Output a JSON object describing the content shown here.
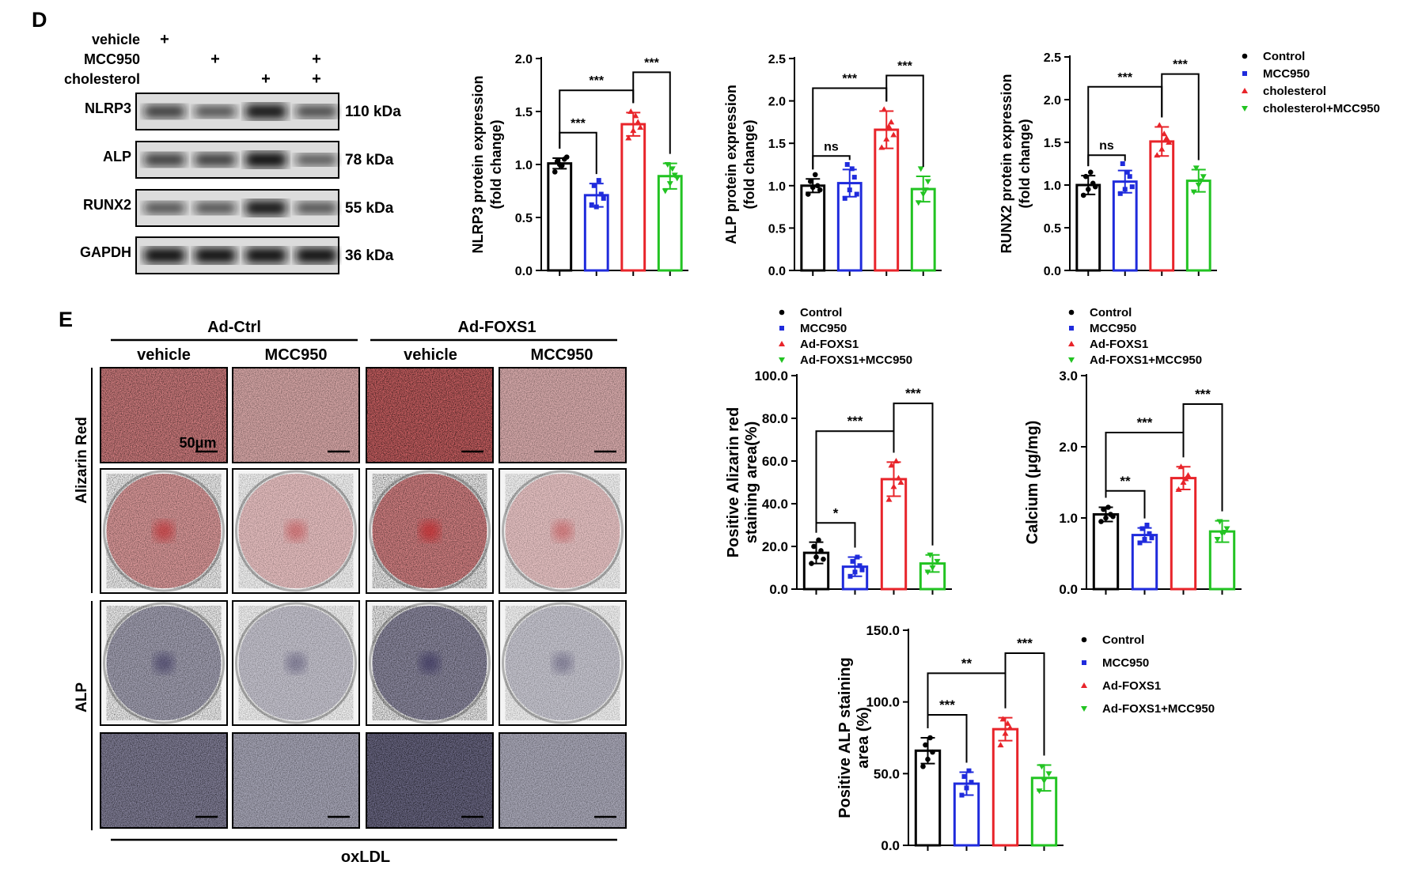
{
  "panels": {
    "d": "D",
    "e": "E"
  },
  "western": {
    "treatments": [
      {
        "label": "vehicle",
        "marks": [
          "+",
          "",
          "",
          ""
        ]
      },
      {
        "label": "MCC950",
        "marks": [
          "",
          "+",
          "",
          "+"
        ]
      },
      {
        "label": "cholesterol",
        "marks": [
          "",
          "",
          "+",
          "+"
        ]
      }
    ],
    "blots": [
      {
        "protein": "NLRP3",
        "size": "110 kDa",
        "intensity": [
          0.7,
          0.55,
          0.95,
          0.6
        ]
      },
      {
        "protein": "ALP",
        "size": "78 kDa",
        "intensity": [
          0.7,
          0.7,
          1.0,
          0.5
        ]
      },
      {
        "protein": "RUNX2",
        "size": "55 kDa",
        "intensity": [
          0.55,
          0.55,
          0.95,
          0.55
        ]
      },
      {
        "protein": "GAPDH",
        "size": "36 kDa",
        "intensity": [
          1.0,
          1.0,
          1.0,
          1.0
        ]
      }
    ]
  },
  "staining": {
    "groups": [
      "Ad-Ctrl",
      "Ad-FOXS1"
    ],
    "columns": [
      "vehicle",
      "MCC950",
      "vehicle",
      "MCC950"
    ],
    "row_labels": [
      "Alizarin Red",
      "ALP"
    ],
    "scale_bar": "50μm",
    "treatment": "oxLDL"
  },
  "chart_data": [
    {
      "type": "bar",
      "ylabel_lines": [
        "NLRP3  protein expression",
        "(fold change)"
      ],
      "categories": [
        "Control",
        "MCC950",
        "cholesterol",
        "cholesterol+MCC950"
      ],
      "values": [
        1.01,
        0.71,
        1.38,
        0.89
      ],
      "errors": [
        0.05,
        0.11,
        0.11,
        0.12
      ],
      "points": [
        [
          0.93,
          1.0,
          1.05,
          1.03,
          0.99,
          1.07
        ],
        [
          0.62,
          0.6,
          0.72,
          0.8,
          0.85,
          0.68
        ],
        [
          1.25,
          1.32,
          1.4,
          1.5,
          1.46,
          1.35
        ],
        [
          0.75,
          0.82,
          0.9,
          1.0,
          0.96,
          0.87
        ]
      ],
      "ylim": [
        0,
        2.0
      ],
      "yticks": [
        "0.0",
        "0.5",
        "1.0",
        "1.5",
        "2.0"
      ],
      "brackets": [
        {
          "from": 0,
          "to": 1,
          "y": 1.3,
          "label": "***"
        },
        {
          "from": 0,
          "to": 2,
          "y": 1.7,
          "label": "***"
        },
        {
          "from": 2,
          "to": 3,
          "y": 1.87,
          "label": "***"
        }
      ],
      "legend": []
    },
    {
      "type": "bar",
      "ylabel_lines": [
        "ALP  protein expression",
        "(fold change)"
      ],
      "categories": [
        "Control",
        "MCC950",
        "cholesterol",
        "cholesterol+MCC950"
      ],
      "values": [
        1.0,
        1.03,
        1.66,
        0.96
      ],
      "errors": [
        0.08,
        0.16,
        0.22,
        0.15
      ],
      "points": [
        [
          0.9,
          0.98,
          1.0,
          1.05,
          1.13,
          0.95
        ],
        [
          0.85,
          0.95,
          1.1,
          1.25,
          1.2,
          0.9
        ],
        [
          1.45,
          1.55,
          1.75,
          1.9,
          1.7,
          1.6
        ],
        [
          0.8,
          0.9,
          1.05,
          1.2,
          0.95
        ]
      ],
      "ylim": [
        0,
        2.5
      ],
      "yticks": [
        "0.0",
        "0.5",
        "1.0",
        "1.5",
        "2.0",
        "2.5"
      ],
      "brackets": [
        {
          "from": 0,
          "to": 1,
          "y": 1.35,
          "label": "ns"
        },
        {
          "from": 0,
          "to": 2,
          "y": 2.15,
          "label": "***"
        },
        {
          "from": 2,
          "to": 3,
          "y": 2.3,
          "label": "***"
        }
      ],
      "legend": []
    },
    {
      "type": "bar",
      "ylabel_lines": [
        "RUNX2  protein expression",
        "(fold change)"
      ],
      "categories": [
        "Control",
        "MCC950",
        "cholesterol",
        "cholesterol+MCC950"
      ],
      "values": [
        1.0,
        1.04,
        1.51,
        1.05
      ],
      "errors": [
        0.11,
        0.13,
        0.17,
        0.13
      ],
      "points": [
        [
          0.88,
          0.95,
          1.02,
          1.1,
          1.15,
          0.98
        ],
        [
          0.9,
          0.95,
          1.1,
          1.25,
          1.15,
          0.98
        ],
        [
          1.35,
          1.42,
          1.55,
          1.7,
          1.6,
          1.5
        ],
        [
          0.92,
          1.0,
          1.1,
          1.2,
          1.05
        ]
      ],
      "ylim": [
        0,
        2.5
      ],
      "yticks": [
        "0.0",
        "0.5",
        "1.0",
        "1.5",
        "2.0",
        "2.5"
      ],
      "brackets": [
        {
          "from": 0,
          "to": 1,
          "y": 1.35,
          "label": "ns"
        },
        {
          "from": 0,
          "to": 2,
          "y": 2.15,
          "label": "***"
        },
        {
          "from": 2,
          "to": 3,
          "y": 2.3,
          "label": "***"
        }
      ],
      "legend": [
        "Control",
        "MCC950",
        "cholesterol",
        "cholesterol+MCC950"
      ]
    },
    {
      "type": "bar",
      "ylabel_lines": [
        "Positive Alizarin red",
        "staining area(%)"
      ],
      "categories": [
        "Control",
        "MCC950",
        "Ad-FOXS1",
        "Ad-FOXS1+MCC950"
      ],
      "values": [
        17,
        10.5,
        51.5,
        12
      ],
      "errors": [
        5,
        4.5,
        8,
        4
      ],
      "points": [
        [
          12,
          15,
          18,
          20,
          23,
          14
        ],
        [
          6,
          8,
          11,
          13,
          15,
          9
        ],
        [
          42,
          48,
          52,
          58,
          60,
          50
        ],
        [
          8,
          10,
          13,
          16
        ]
      ],
      "ylim": [
        0,
        100
      ],
      "yticks": [
        "0.0",
        "20.0",
        "40.0",
        "60.0",
        "80.0",
        "100.0"
      ],
      "brackets": [
        {
          "from": 0,
          "to": 1,
          "y": 31,
          "label": "*"
        },
        {
          "from": 0,
          "to": 2,
          "y": 74,
          "label": "***"
        },
        {
          "from": 2,
          "to": 3,
          "y": 87,
          "label": "***"
        }
      ],
      "legend": [
        "Control",
        "MCC950",
        "Ad-FOXS1",
        "Ad-FOXS1+MCC950"
      ]
    },
    {
      "type": "bar",
      "ylabel_lines": [
        "Calcium (μg/mg)"
      ],
      "categories": [
        "Control",
        "MCC950",
        "Ad-FOXS1",
        "Ad-FOXS1+MCC950"
      ],
      "values": [
        1.05,
        0.76,
        1.56,
        0.81
      ],
      "errors": [
        0.1,
        0.1,
        0.16,
        0.15
      ],
      "points": [
        [
          0.95,
          1.0,
          1.05,
          1.12,
          1.15,
          1.02
        ],
        [
          0.65,
          0.7,
          0.78,
          0.85,
          0.9,
          0.72
        ],
        [
          1.4,
          1.5,
          1.6,
          1.72,
          1.55
        ],
        [
          0.7,
          0.78,
          0.85,
          0.95,
          0.8
        ]
      ],
      "ylim": [
        0,
        3.0
      ],
      "yticks": [
        "0.0",
        "1.0",
        "2.0",
        "3.0"
      ],
      "brackets": [
        {
          "from": 0,
          "to": 1,
          "y": 1.38,
          "label": "**"
        },
        {
          "from": 0,
          "to": 2,
          "y": 2.2,
          "label": "***"
        },
        {
          "from": 2,
          "to": 3,
          "y": 2.6,
          "label": "***"
        }
      ],
      "legend": [
        "Control",
        "MCC950",
        "Ad-FOXS1",
        "Ad-FOXS1+MCC950"
      ]
    },
    {
      "type": "bar",
      "ylabel_lines": [
        "Positive ALP staining",
        "area (%)"
      ],
      "categories": [
        "Control",
        "MCC950",
        "Ad-FOXS1",
        "Ad-FOXS1+MCC950"
      ],
      "values": [
        66,
        43,
        81,
        47
      ],
      "errors": [
        9,
        8,
        8,
        9
      ],
      "points": [
        [
          55,
          60,
          65,
          70,
          75
        ],
        [
          35,
          40,
          44,
          48,
          52
        ],
        [
          70,
          78,
          82,
          88,
          85
        ],
        [
          38,
          45,
          50,
          55
        ]
      ],
      "ylim": [
        0,
        150
      ],
      "yticks": [
        "0.0",
        "50.0",
        "100.0",
        "150.0"
      ],
      "brackets": [
        {
          "from": 0,
          "to": 1,
          "y": 91,
          "label": "***"
        },
        {
          "from": 0,
          "to": 2,
          "y": 120,
          "label": "**"
        },
        {
          "from": 2,
          "to": 3,
          "y": 134,
          "label": "***"
        }
      ],
      "legend": [
        "Control",
        "MCC950",
        "Ad-FOXS1",
        "Ad-FOXS1+MCC950"
      ]
    }
  ],
  "colors": {
    "series": [
      "#000000",
      "#1f2bdc",
      "#e8242a",
      "#22c322"
    ],
    "blot_band": "#111111",
    "alizarin": "#c0262a",
    "alp_stain": "#3c3760"
  }
}
